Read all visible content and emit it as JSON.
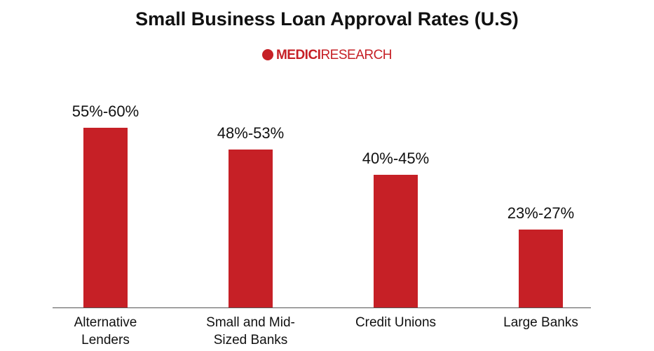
{
  "chart_data": {
    "type": "bar",
    "title": "Small Business Loan Approval Rates (U.S)",
    "logo": {
      "brand": "MEDICI",
      "suffix": "RESEARCH"
    },
    "categories": [
      "Alternative Lenders",
      "Small and Mid-Sized Banks",
      "Credit Unions",
      "Large Banks"
    ],
    "values": [
      57.5,
      50.5,
      42.5,
      25
    ],
    "value_labels": [
      "55%-60%",
      "48%-53%",
      "40%-45%",
      "23%-27%"
    ],
    "color": "#c62026",
    "ylim": [
      0,
      60
    ]
  }
}
